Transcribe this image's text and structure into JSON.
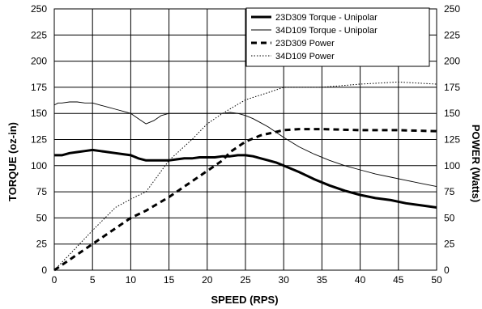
{
  "chart_data": {
    "type": "line",
    "xlabel": "SPEED (RPS)",
    "ylabel": "TORQUE (oz-in)",
    "y2label": "POWER (Watts)",
    "xlim": [
      0,
      50
    ],
    "ylim": [
      0,
      250
    ],
    "y2lim": [
      0,
      250
    ],
    "x_ticks": [
      0,
      5,
      10,
      15,
      20,
      25,
      30,
      35,
      40,
      45,
      50
    ],
    "y_ticks": [
      0,
      25,
      50,
      75,
      100,
      125,
      150,
      175,
      200,
      225,
      250
    ],
    "y2_ticks": [
      0,
      25,
      50,
      75,
      100,
      125,
      150,
      175,
      200,
      225,
      250
    ],
    "grid": true,
    "legend_position": "top-right",
    "series": [
      {
        "name": "23D309 Torque - Unipolar",
        "axis": "left",
        "style": "thick-solid",
        "x": [
          0,
          1,
          2,
          3,
          4,
          5,
          6,
          7,
          8,
          9,
          10,
          11,
          12,
          13,
          14,
          15,
          16,
          17,
          18,
          19,
          20,
          21,
          22,
          23,
          24,
          25,
          26,
          27,
          28,
          29,
          30,
          32,
          34,
          36,
          38,
          40,
          42,
          44,
          46,
          48,
          50
        ],
        "values": [
          110,
          110,
          112,
          113,
          114,
          115,
          114,
          113,
          112,
          111,
          110,
          107,
          105,
          105,
          105,
          105,
          106,
          107,
          107,
          108,
          108,
          108,
          109,
          109,
          110,
          110,
          109,
          107,
          105,
          103,
          100,
          94,
          87,
          81,
          76,
          72,
          69,
          67,
          64,
          62,
          60
        ]
      },
      {
        "name": "34D109 Torque - Unipolar",
        "axis": "left",
        "style": "thin-solid",
        "x": [
          0,
          0.5,
          1,
          2,
          3,
          4,
          5,
          6,
          7,
          8,
          9,
          10,
          11,
          12,
          13,
          14,
          15,
          16,
          17,
          18,
          19,
          20,
          21,
          22,
          23,
          24,
          25,
          26,
          27,
          28,
          29,
          30,
          32,
          34,
          36,
          38,
          40,
          42,
          44,
          46,
          48,
          50
        ],
        "values": [
          158,
          160,
          160,
          161,
          161,
          160,
          160,
          158,
          156,
          154,
          152,
          150,
          145,
          140,
          143,
          148,
          150,
          150,
          150,
          150,
          150,
          150,
          150,
          150,
          151,
          150,
          148,
          145,
          141,
          137,
          132,
          127,
          118,
          111,
          105,
          100,
          96,
          92,
          89,
          86,
          83,
          80
        ]
      },
      {
        "name": "23D309 Power",
        "axis": "right",
        "style": "dashed",
        "x": [
          0,
          2,
          5,
          8,
          10,
          12,
          15,
          18,
          20,
          22,
          23,
          24,
          25,
          27,
          30,
          32,
          35,
          40,
          45,
          50
        ],
        "values": [
          0,
          10,
          25,
          40,
          50,
          57,
          70,
          85,
          95,
          105,
          113,
          118,
          123,
          129,
          134,
          135,
          135,
          134,
          134,
          133
        ]
      },
      {
        "name": "34D109 Power",
        "axis": "right",
        "style": "dotted",
        "x": [
          0,
          2,
          5,
          8,
          10,
          12,
          13,
          15,
          18,
          20,
          22,
          25,
          28,
          30,
          35,
          40,
          45,
          50
        ],
        "values": [
          0,
          15,
          38,
          60,
          68,
          75,
          85,
          105,
          125,
          140,
          150,
          163,
          170,
          175,
          175,
          178,
          180,
          178
        ]
      }
    ]
  }
}
